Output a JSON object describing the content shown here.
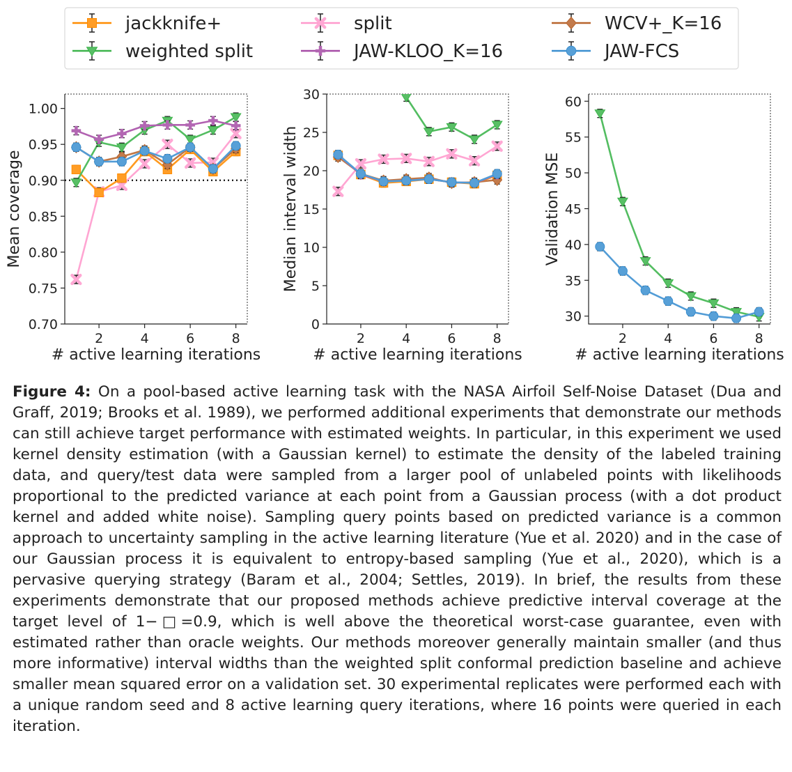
{
  "legend": [
    {
      "name": "jackknife+",
      "color": "#ff8c00",
      "marker": "square"
    },
    {
      "name": "split",
      "color": "#ff99cc",
      "marker": "x"
    },
    {
      "name": "WCV+_K=16",
      "color": "#b8642c",
      "marker": "diamond"
    },
    {
      "name": "weighted split",
      "color": "#3cb44b",
      "marker": "triangle"
    },
    {
      "name": "JAW-KLOO_K=16",
      "color": "#a64ca6",
      "marker": "plus"
    },
    {
      "name": "JAW-FCS",
      "color": "#3a8fd0",
      "marker": "circle"
    }
  ],
  "chart_data": [
    {
      "type": "line",
      "xlabel": "# active learning iterations",
      "ylabel": "Mean coverage",
      "xlim": [
        0.5,
        8.5
      ],
      "ylim": [
        0.7,
        1.02
      ],
      "xticks": [
        2,
        4,
        6,
        8
      ],
      "yticks": [
        0.7,
        0.75,
        0.8,
        0.85,
        0.9,
        0.95,
        1.0
      ],
      "ytick_labels": [
        "0.70",
        "0.75",
        "0.80",
        "0.85",
        "0.90",
        "0.95",
        "1.00"
      ],
      "hline": 0.9,
      "x": [
        1,
        2,
        3,
        4,
        5,
        6,
        7,
        8
      ],
      "series": [
        {
          "name": "split",
          "values": [
            0.762,
            0.884,
            0.893,
            0.923,
            0.95,
            0.924,
            0.925,
            0.965
          ]
        },
        {
          "name": "jackknife+",
          "values": [
            0.915,
            0.883,
            0.903,
            0.94,
            0.915,
            0.943,
            0.912,
            0.94
          ]
        },
        {
          "name": "WCV+_K=16",
          "values": [
            0.946,
            0.926,
            0.933,
            0.942,
            0.922,
            0.946,
            0.916,
            0.944
          ]
        },
        {
          "name": "weighted split",
          "values": [
            0.897,
            0.953,
            0.946,
            0.97,
            0.983,
            0.957,
            0.97,
            0.988
          ]
        },
        {
          "name": "JAW-KLOO_K=16",
          "values": [
            0.969,
            0.957,
            0.965,
            0.976,
            0.977,
            0.977,
            0.983,
            0.976
          ]
        },
        {
          "name": "JAW-FCS",
          "values": [
            0.946,
            0.926,
            0.926,
            0.941,
            0.93,
            0.946,
            0.916,
            0.948
          ]
        }
      ]
    },
    {
      "type": "line",
      "xlabel": "# active learning iterations",
      "ylabel": "Median interval width",
      "xlim": [
        0.5,
        8.5
      ],
      "ylim": [
        0,
        30
      ],
      "xticks": [
        2,
        4,
        6,
        8
      ],
      "yticks": [
        0,
        5,
        10,
        15,
        20,
        25,
        30
      ],
      "ytick_labels": [
        "0",
        "5",
        "10",
        "15",
        "20",
        "25",
        "30"
      ],
      "x": [
        1,
        2,
        3,
        4,
        5,
        6,
        7,
        8
      ],
      "series": [
        {
          "name": "split",
          "values": [
            17.3,
            20.9,
            21.5,
            21.6,
            21.2,
            22.2,
            21.3,
            23.2
          ]
        },
        {
          "name": "jackknife+",
          "values": [
            22.0,
            19.5,
            18.4,
            18.6,
            18.9,
            18.5,
            18.3,
            19.4
          ]
        },
        {
          "name": "WCV+_K=16",
          "values": [
            21.8,
            19.6,
            18.7,
            18.9,
            19.1,
            18.4,
            18.5,
            18.8
          ]
        },
        {
          "name": "weighted split",
          "values": [
            null,
            null,
            null,
            29.6,
            25.1,
            25.7,
            24.1,
            26.0
          ]
        },
        {
          "name": "JAW-KLOO_K=16",
          "values": [
            22.1,
            19.5,
            18.6,
            18.7,
            18.9,
            18.5,
            18.4,
            19.5
          ]
        },
        {
          "name": "JAW-FCS",
          "values": [
            22.1,
            19.6,
            18.6,
            18.7,
            18.9,
            18.5,
            18.4,
            19.6
          ]
        }
      ]
    },
    {
      "type": "line",
      "xlabel": "# active learning iterations",
      "ylabel": "Validation MSE",
      "xlim": [
        0.5,
        8.5
      ],
      "ylim": [
        28.9,
        61.0
      ],
      "xticks": [
        2,
        4,
        6,
        8
      ],
      "yticks": [
        30,
        35,
        40,
        45,
        50,
        55,
        60
      ],
      "ytick_labels": [
        "30",
        "35",
        "40",
        "45",
        "50",
        "55",
        "60"
      ],
      "x": [
        1,
        2,
        3,
        4,
        5,
        6,
        7,
        8
      ],
      "series": [
        {
          "name": "weighted split",
          "values": [
            58.3,
            46.0,
            37.7,
            34.6,
            32.8,
            31.8,
            30.6,
            29.9
          ]
        },
        {
          "name": "JAW-FCS",
          "values": [
            39.7,
            36.3,
            33.6,
            32.1,
            30.6,
            30.0,
            29.7,
            30.6
          ]
        }
      ]
    }
  ],
  "caption": {
    "label": "Figure 4:",
    "text": " On a pool-based active learning task with the NASA Airfoil Self-Noise Dataset (Dua and Graff, 2019; Brooks et al. 1989), we performed additional experiments that demonstrate our methods can still achieve target performance with estimated weights. In particular, in this experiment we used kernel density estimation (with a Gaussian kernel) to estimate the density of the labeled training data, and query/test data were sampled from a larger pool of unlabeled points with likelihoods proportional to the predicted variance at each point from a Gaussian process (with a dot product kernel and added white noise). Sampling query points based on predicted variance is a common approach to uncertainty sampling in the active learning literature (Yue et al. 2020) and in the case of our Gaussian process it is equivalent to entropy-based sampling (Yue et al., 2020), which is a pervasive querying strategy (Baram et al., 2004; Settles, 2019). In brief, the results from these experiments demonstrate that our proposed methods achieve predictive interval coverage at the target level of 1−□=0.9, which is well above the theoretical worst-case guarantee, even with estimated rather than oracle weights. Our methods moreover generally maintain smaller (and thus more informative) interval widths than the weighted split conformal prediction baseline and achieve smaller mean squared error on a validation set. 30 experimental replicates were performed each with a unique random seed and 8 active learning query iterations, where 16 points were queried in each iteration."
  }
}
